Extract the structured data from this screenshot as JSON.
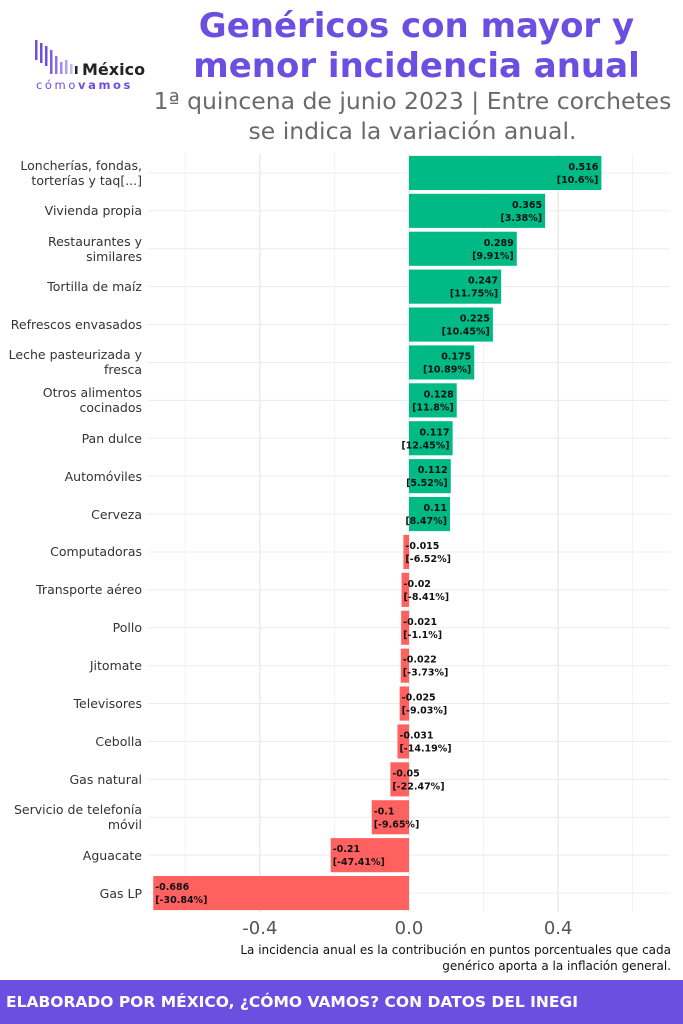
{
  "header": {
    "title": "Genéricos con mayor y menor incidencia anual",
    "subtitle": "1ª quincena de junio 2023 | Entre corchetes se indica la variación anual."
  },
  "logo": {
    "word": "México",
    "sub_light": "cómo",
    "sub_bold": "vamos"
  },
  "chart_data": {
    "type": "bar",
    "orientation": "horizontal",
    "categories": [
      "Loncherías, fondas, torterías y taq[...]",
      "Vivienda propia",
      "Restaurantes y similares",
      "Tortilla de maíz",
      "Refrescos envasados",
      "Leche pasteurizada y fresca",
      "Otros alimentos cocinados",
      "Pan dulce",
      "Automóviles",
      "Cerveza",
      "Computadoras",
      "Transporte aéreo",
      "Pollo",
      "Jitomate",
      "Televisores",
      "Cebolla",
      "Gas natural",
      "Servicio de telefonía móvil",
      "Aguacate",
      "Gas LP"
    ],
    "values": [
      0.516,
      0.365,
      0.289,
      0.247,
      0.225,
      0.175,
      0.128,
      0.117,
      0.112,
      0.11,
      -0.015,
      -0.02,
      -0.021,
      -0.022,
      -0.025,
      -0.031,
      -0.05,
      -0.1,
      -0.21,
      -0.686
    ],
    "value_labels": [
      "0.516",
      "0.365",
      "0.289",
      "0.247",
      "0.225",
      "0.175",
      "0.128",
      "0.117",
      "0.112",
      "0.11",
      "-0.015",
      "-0.02",
      "-0.021",
      "-0.022",
      "-0.025",
      "-0.031",
      "-0.05",
      "-0.1",
      "-0.21",
      "-0.686"
    ],
    "variation_labels": [
      "[10.6%]",
      "[3.38%]",
      "[9.91%]",
      "[11.75%]",
      "[10.45%]",
      "[10.89%]",
      "[11.8%]",
      "[12.45%]",
      "[5.52%]",
      "[8.47%]",
      "[-6.52%]",
      "[-8.41%]",
      "[-1.1%]",
      "[-3.73%]",
      "[-9.03%]",
      "[-14.19%]",
      "[-22.47%]",
      "[-9.65%]",
      "[-47.41%]",
      "[-30.84%]"
    ],
    "xlim": [
      -0.7,
      0.7
    ],
    "x_ticks": [
      -0.4,
      0.0,
      0.4
    ],
    "x_tick_labels": [
      "-0.4",
      "0.0",
      "0.4"
    ],
    "positive_color": "#00ba86",
    "negative_color": "#ff6161",
    "grid": true,
    "legend": "none"
  },
  "note": "La incidencia anual es la contribución en puntos porcentuales que cada genérico aporta a la inflación general.",
  "footer": "ELABORADO POR MÉXICO, ¿CÓMO VAMOS? CON DATOS DEL INEGI"
}
